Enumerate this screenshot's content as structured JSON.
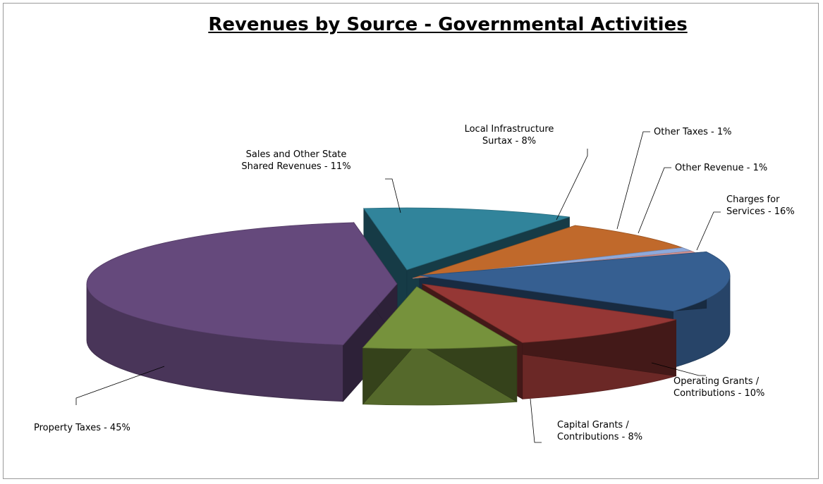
{
  "chart_data": {
    "type": "pie",
    "title": "Revenues by Source - Governmental Activities",
    "slices": [
      {
        "label": [
          "Property Taxes - 45%"
        ],
        "value": 45,
        "color": "#65497c"
      },
      {
        "label": [
          "Sales and Other State",
          "Shared Revenues - 11%"
        ],
        "value": 11,
        "color": "#31849b"
      },
      {
        "label": [
          "Local Infrastructure",
          "Surtax - 8%"
        ],
        "value": 8,
        "color": "#c0692b"
      },
      {
        "label": [
          "Other Taxes - 1%"
        ],
        "value": 1,
        "color": "#8ea9db"
      },
      {
        "label": [
          "Other Revenue - 1%"
        ],
        "value": 1,
        "color": "#d99694"
      },
      {
        "label": [
          "Charges for",
          "Services - 16%"
        ],
        "value": 16,
        "color": "#365f91"
      },
      {
        "label": [
          "Operating Grants /",
          "Contributions - 10%"
        ],
        "value": 10,
        "color": "#953735"
      },
      {
        "label": [
          "Capital Grants /",
          "Contributions - 8%"
        ],
        "value": 8,
        "color": "#76923c"
      }
    ]
  }
}
